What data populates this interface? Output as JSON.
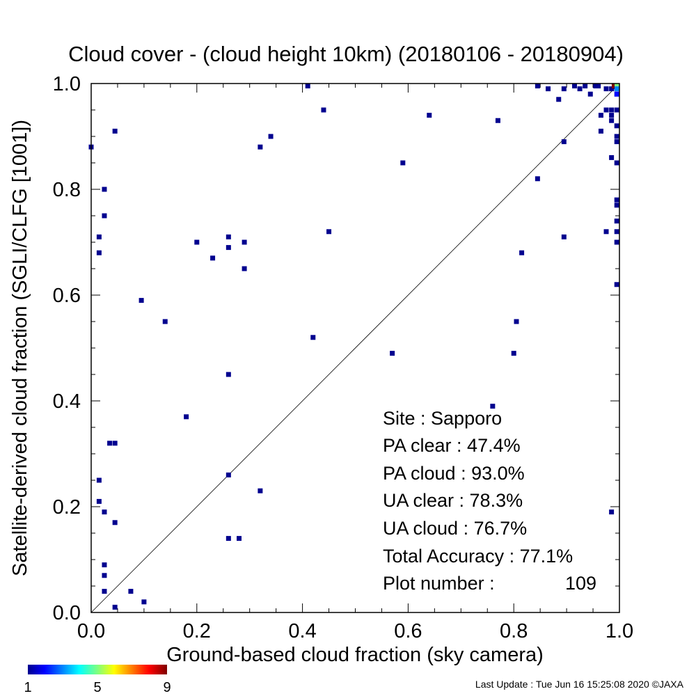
{
  "chart_data": {
    "type": "scatter",
    "title": "Cloud cover - (cloud height 10km)  (20180106 - 20180904)",
    "xlabel": "Ground-based cloud fraction (sky camera)",
    "ylabel": "Satellite-derived cloud fraction (SGLI/CLFG [1001])",
    "xlim": [
      0,
      1
    ],
    "ylim": [
      0,
      1
    ],
    "x_ticks": [
      "0.0",
      "0.2",
      "0.4",
      "0.6",
      "0.8",
      "1.0"
    ],
    "y_ticks": [
      "0.0",
      "0.2",
      "0.4",
      "0.6",
      "0.8",
      "1.0"
    ],
    "diagonal_line": true,
    "colorbar": {
      "min_label": "1",
      "mid_label": "5",
      "max_label": "9",
      "colormap": "rainbow"
    },
    "points": [
      {
        "x": 0.0,
        "y": 0.88,
        "count": 1
      },
      {
        "x": 0.015,
        "y": 0.71,
        "count": 1
      },
      {
        "x": 0.015,
        "y": 0.68,
        "count": 1
      },
      {
        "x": 0.015,
        "y": 0.25,
        "count": 1
      },
      {
        "x": 0.015,
        "y": 0.21,
        "count": 1
      },
      {
        "x": 0.025,
        "y": 0.8,
        "count": 1
      },
      {
        "x": 0.025,
        "y": 0.75,
        "count": 1
      },
      {
        "x": 0.025,
        "y": 0.19,
        "count": 1
      },
      {
        "x": 0.025,
        "y": 0.09,
        "count": 1
      },
      {
        "x": 0.025,
        "y": 0.07,
        "count": 1
      },
      {
        "x": 0.025,
        "y": 0.04,
        "count": 1
      },
      {
        "x": 0.035,
        "y": 0.32,
        "count": 1
      },
      {
        "x": 0.045,
        "y": 0.32,
        "count": 1
      },
      {
        "x": 0.045,
        "y": 0.91,
        "count": 1
      },
      {
        "x": 0.045,
        "y": 0.17,
        "count": 1
      },
      {
        "x": 0.045,
        "y": 0.01,
        "count": 1
      },
      {
        "x": 0.075,
        "y": 0.04,
        "count": 1
      },
      {
        "x": 0.095,
        "y": 0.59,
        "count": 1
      },
      {
        "x": 0.1,
        "y": 0.02,
        "count": 1
      },
      {
        "x": 0.14,
        "y": 0.55,
        "count": 1
      },
      {
        "x": 0.18,
        "y": 0.37,
        "count": 1
      },
      {
        "x": 0.2,
        "y": 0.7,
        "count": 1
      },
      {
        "x": 0.23,
        "y": 0.67,
        "count": 1
      },
      {
        "x": 0.26,
        "y": 0.71,
        "count": 1
      },
      {
        "x": 0.26,
        "y": 0.69,
        "count": 1
      },
      {
        "x": 0.26,
        "y": 0.45,
        "count": 1
      },
      {
        "x": 0.26,
        "y": 0.26,
        "count": 1
      },
      {
        "x": 0.26,
        "y": 0.14,
        "count": 1
      },
      {
        "x": 0.28,
        "y": 0.14,
        "count": 1
      },
      {
        "x": 0.29,
        "y": 0.7,
        "count": 1
      },
      {
        "x": 0.29,
        "y": 0.65,
        "count": 1
      },
      {
        "x": 0.32,
        "y": 0.88,
        "count": 1
      },
      {
        "x": 0.32,
        "y": 0.23,
        "count": 1
      },
      {
        "x": 0.34,
        "y": 0.9,
        "count": 1
      },
      {
        "x": 0.41,
        "y": 1.0,
        "count": 1
      },
      {
        "x": 0.42,
        "y": 0.52,
        "count": 1
      },
      {
        "x": 0.44,
        "y": 0.95,
        "count": 1
      },
      {
        "x": 0.45,
        "y": 0.72,
        "count": 1
      },
      {
        "x": 0.57,
        "y": 0.49,
        "count": 1
      },
      {
        "x": 0.59,
        "y": 0.85,
        "count": 1
      },
      {
        "x": 0.64,
        "y": 0.94,
        "count": 1
      },
      {
        "x": 0.76,
        "y": 0.39,
        "count": 1
      },
      {
        "x": 0.77,
        "y": 0.93,
        "count": 1
      },
      {
        "x": 0.8,
        "y": 0.49,
        "count": 1
      },
      {
        "x": 0.805,
        "y": 0.55,
        "count": 1
      },
      {
        "x": 0.815,
        "y": 0.68,
        "count": 1
      },
      {
        "x": 0.845,
        "y": 1.0,
        "count": 1
      },
      {
        "x": 0.845,
        "y": 0.82,
        "count": 1
      },
      {
        "x": 0.865,
        "y": 0.99,
        "count": 1
      },
      {
        "x": 0.885,
        "y": 0.97,
        "count": 1
      },
      {
        "x": 0.895,
        "y": 0.99,
        "count": 1
      },
      {
        "x": 0.895,
        "y": 0.89,
        "count": 1
      },
      {
        "x": 0.895,
        "y": 0.71,
        "count": 1
      },
      {
        "x": 0.915,
        "y": 1.0,
        "count": 1
      },
      {
        "x": 0.925,
        "y": 0.99,
        "count": 1
      },
      {
        "x": 0.935,
        "y": 1.0,
        "count": 1
      },
      {
        "x": 0.945,
        "y": 0.98,
        "count": 1
      },
      {
        "x": 0.955,
        "y": 1.0,
        "count": 1
      },
      {
        "x": 0.96,
        "y": 1.0,
        "count": 1
      },
      {
        "x": 0.965,
        "y": 0.94,
        "count": 1
      },
      {
        "x": 0.965,
        "y": 0.91,
        "count": 1
      },
      {
        "x": 0.975,
        "y": 0.99,
        "count": 1
      },
      {
        "x": 0.975,
        "y": 0.95,
        "count": 1
      },
      {
        "x": 0.975,
        "y": 0.72,
        "count": 1
      },
      {
        "x": 0.985,
        "y": 0.99,
        "count": 1
      },
      {
        "x": 0.985,
        "y": 0.95,
        "count": 1
      },
      {
        "x": 0.985,
        "y": 0.94,
        "count": 1
      },
      {
        "x": 0.985,
        "y": 0.93,
        "count": 1
      },
      {
        "x": 0.985,
        "y": 0.86,
        "count": 1
      },
      {
        "x": 0.985,
        "y": 0.19,
        "count": 1
      },
      {
        "x": 0.99,
        "y": 1.0,
        "count": 9
      },
      {
        "x": 0.995,
        "y": 0.99,
        "count": 1
      },
      {
        "x": 0.995,
        "y": 0.98,
        "count": 1
      },
      {
        "x": 0.995,
        "y": 0.95,
        "count": 1
      },
      {
        "x": 0.995,
        "y": 0.92,
        "count": 1
      },
      {
        "x": 0.995,
        "y": 0.9,
        "count": 1
      },
      {
        "x": 0.995,
        "y": 0.89,
        "count": 1
      },
      {
        "x": 0.995,
        "y": 0.85,
        "count": 1
      },
      {
        "x": 0.995,
        "y": 0.78,
        "count": 1
      },
      {
        "x": 0.995,
        "y": 0.77,
        "count": 1
      },
      {
        "x": 0.995,
        "y": 0.74,
        "count": 1
      },
      {
        "x": 0.995,
        "y": 0.72,
        "count": 1
      },
      {
        "x": 0.995,
        "y": 0.7,
        "count": 1
      },
      {
        "x": 0.995,
        "y": 0.62,
        "count": 1
      },
      {
        "x": 1.0,
        "y": 1.0,
        "count": 5
      },
      {
        "x": 1.0,
        "y": 0.99,
        "count": 3
      },
      {
        "x": 1.0,
        "y": 0.98,
        "count": 2
      }
    ]
  },
  "stats": {
    "site": "Site : Sapporo",
    "pa_clear": "PA clear :  47.4%",
    "pa_cloud": "PA cloud :  93.0%",
    "ua_clear": "UA clear :  78.3%",
    "ua_cloud": "UA cloud :  76.7%",
    "total_accuracy": "Total Accuracy :  77.1%",
    "plot_number_label": "Plot number :",
    "plot_number_value": "109"
  },
  "footer": {
    "last_update": "Last Update : Tue Jun 16 15:25:08 2020  ©JAXA"
  },
  "colors": {
    "background": "#ffffff",
    "axis": "#000000",
    "point_default": "#00008f"
  }
}
